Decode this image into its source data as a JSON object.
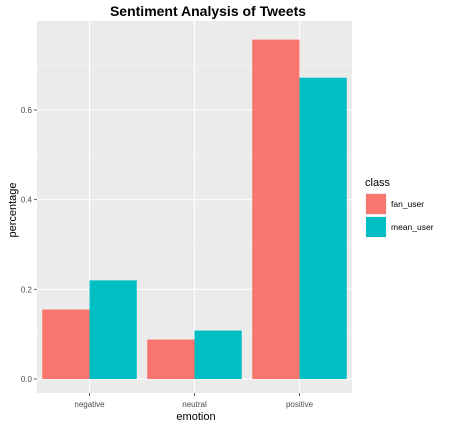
{
  "chart_data": {
    "type": "bar",
    "title": "Sentiment Analysis of Tweets",
    "xlabel": "emotion",
    "ylabel": "percentage",
    "categories": [
      "negative",
      "neutral",
      "positive"
    ],
    "series": [
      {
        "name": "fan_user",
        "values": [
          0.155,
          0.088,
          0.757
        ],
        "color": "#F8766D"
      },
      {
        "name": "mean_user",
        "values": [
          0.22,
          0.108,
          0.672
        ],
        "color": "#00BFC4"
      }
    ],
    "yticks": [
      0.0,
      0.2,
      0.4,
      0.6
    ],
    "ytick_labels": [
      "0.0",
      "0.2",
      "0.4",
      "0.6"
    ],
    "ylim": [
      -0.035,
      0.795
    ],
    "grid": true,
    "legend": {
      "title": "class",
      "position": "right"
    },
    "panel_background": "#EBEBEB"
  }
}
